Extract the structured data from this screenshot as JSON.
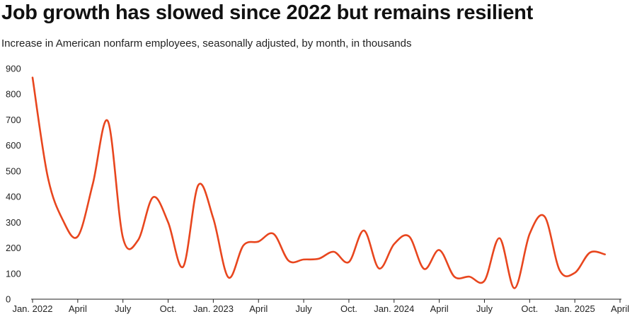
{
  "title": "Job growth has slowed since 2022 but remains resilient",
  "subtitle": "Increase in American nonfarm employees, seasonally adjusted, by month, in thousands",
  "colors": {
    "line": "#e8461e",
    "axis": "#222222",
    "text": "#222222"
  },
  "chart_data": {
    "type": "line",
    "title": "Job growth has slowed since 2022 but remains resilient",
    "subtitle": "Increase in American nonfarm employees, seasonally adjusted, by month, in thousands",
    "xlabel": "",
    "ylabel": "",
    "ylim": [
      0,
      900
    ],
    "yticks": [
      0,
      100,
      200,
      300,
      400,
      500,
      600,
      700,
      800,
      900
    ],
    "xticks": [
      {
        "label": "Jan. 2022",
        "x": "2022-01"
      },
      {
        "label": "April",
        "x": "2022-04"
      },
      {
        "label": "July",
        "x": "2022-07"
      },
      {
        "label": "Oct.",
        "x": "2022-10"
      },
      {
        "label": "Jan. 2023",
        "x": "2023-01"
      },
      {
        "label": "April",
        "x": "2023-04"
      },
      {
        "label": "July",
        "x": "2023-07"
      },
      {
        "label": "Oct.",
        "x": "2023-10"
      },
      {
        "label": "Jan. 2024",
        "x": "2024-01"
      },
      {
        "label": "April",
        "x": "2024-04"
      },
      {
        "label": "July",
        "x": "2024-07"
      },
      {
        "label": "Oct.",
        "x": "2024-10"
      },
      {
        "label": "Jan. 2025",
        "x": "2025-01"
      },
      {
        "label": "April",
        "x": "2025-04"
      }
    ],
    "grid": false,
    "series": [
      {
        "points": [
          {
            "x": "2022-01",
            "y": 865
          },
          {
            "x": "2022-02",
            "y": 480
          },
          {
            "x": "2022-03",
            "y": 310
          },
          {
            "x": "2022-04",
            "y": 245
          },
          {
            "x": "2022-05",
            "y": 450
          },
          {
            "x": "2022-06",
            "y": 695
          },
          {
            "x": "2022-07",
            "y": 240
          },
          {
            "x": "2022-08",
            "y": 230
          },
          {
            "x": "2022-09",
            "y": 398
          },
          {
            "x": "2022-10",
            "y": 300
          },
          {
            "x": "2022-11",
            "y": 127
          },
          {
            "x": "2022-12",
            "y": 445
          },
          {
            "x": "2023-01",
            "y": 315
          },
          {
            "x": "2023-02",
            "y": 85
          },
          {
            "x": "2023-03",
            "y": 210
          },
          {
            "x": "2023-04",
            "y": 225
          },
          {
            "x": "2023-05",
            "y": 255
          },
          {
            "x": "2023-06",
            "y": 150
          },
          {
            "x": "2023-07",
            "y": 155
          },
          {
            "x": "2023-08",
            "y": 158
          },
          {
            "x": "2023-09",
            "y": 185
          },
          {
            "x": "2023-10",
            "y": 145
          },
          {
            "x": "2023-11",
            "y": 268
          },
          {
            "x": "2023-12",
            "y": 120
          },
          {
            "x": "2024-01",
            "y": 215
          },
          {
            "x": "2024-02",
            "y": 245
          },
          {
            "x": "2024-03",
            "y": 118
          },
          {
            "x": "2024-04",
            "y": 192
          },
          {
            "x": "2024-05",
            "y": 88
          },
          {
            "x": "2024-06",
            "y": 88
          },
          {
            "x": "2024-07",
            "y": 72
          },
          {
            "x": "2024-08",
            "y": 238
          },
          {
            "x": "2024-09",
            "y": 43
          },
          {
            "x": "2024-10",
            "y": 255
          },
          {
            "x": "2024-11",
            "y": 322
          },
          {
            "x": "2024-12",
            "y": 112
          },
          {
            "x": "2025-01",
            "y": 103
          },
          {
            "x": "2025-02",
            "y": 182
          },
          {
            "x": "2025-03",
            "y": 175
          }
        ]
      }
    ]
  }
}
